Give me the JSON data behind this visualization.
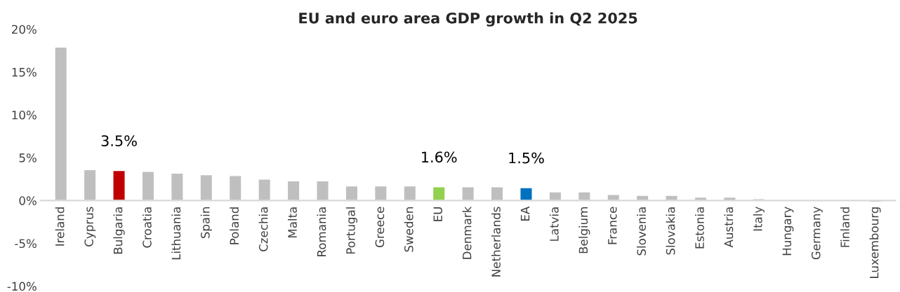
{
  "chart_data": {
    "type": "bar",
    "title": "EU and euro area GDP growth in Q2 2025",
    "categories": [
      "Ireland",
      "Cyprus",
      "Bulgaria",
      "Croatia",
      "Lithuania",
      "Spain",
      "Poland",
      "Czechia",
      "Malta",
      "Romania",
      "Portugal",
      "Greece",
      "Sweden",
      "EU",
      "Denmark",
      "Netherlands",
      "EA",
      "Latvia",
      "Belgium",
      "France",
      "Slovenia",
      "Slovakia",
      "Estonia",
      "Austria",
      "Italy",
      "Hungary",
      "Germany",
      "Finland",
      "Luxembourg"
    ],
    "values": [
      17.9,
      3.6,
      3.5,
      3.4,
      3.2,
      3.0,
      2.9,
      2.5,
      2.3,
      2.3,
      1.7,
      1.7,
      1.7,
      1.6,
      1.6,
      1.6,
      1.5,
      1.0,
      1.0,
      0.7,
      0.6,
      0.6,
      0.4,
      0.4,
      0.2,
      0.1,
      0.1,
      0.1,
      -0.2
    ],
    "colors": [
      "#bfbfbf",
      "#bfbfbf",
      "#c00000",
      "#bfbfbf",
      "#bfbfbf",
      "#bfbfbf",
      "#bfbfbf",
      "#bfbfbf",
      "#bfbfbf",
      "#bfbfbf",
      "#bfbfbf",
      "#bfbfbf",
      "#bfbfbf",
      "#92d050",
      "#bfbfbf",
      "#bfbfbf",
      "#0070c0",
      "#bfbfbf",
      "#bfbfbf",
      "#bfbfbf",
      "#bfbfbf",
      "#bfbfbf",
      "#bfbfbf",
      "#bfbfbf",
      "#bfbfbf",
      "#bfbfbf",
      "#bfbfbf",
      "#bfbfbf",
      "#bfbfbf"
    ],
    "value_labels": [
      null,
      null,
      "3.5%",
      null,
      null,
      null,
      null,
      null,
      null,
      null,
      null,
      null,
      null,
      "1.6%",
      null,
      null,
      "1.5%",
      null,
      null,
      null,
      null,
      null,
      null,
      null,
      null,
      null,
      null,
      null,
      null
    ],
    "ylim": [
      -10,
      20
    ],
    "yticks": [
      {
        "value": -10,
        "label": "-10%"
      },
      {
        "value": -5,
        "label": "-5%"
      },
      {
        "value": 0,
        "label": "0%"
      },
      {
        "value": 5,
        "label": "5%"
      },
      {
        "value": 10,
        "label": "10%"
      },
      {
        "value": 15,
        "label": "15%"
      },
      {
        "value": 20,
        "label": "20%"
      }
    ],
    "grid": false
  }
}
